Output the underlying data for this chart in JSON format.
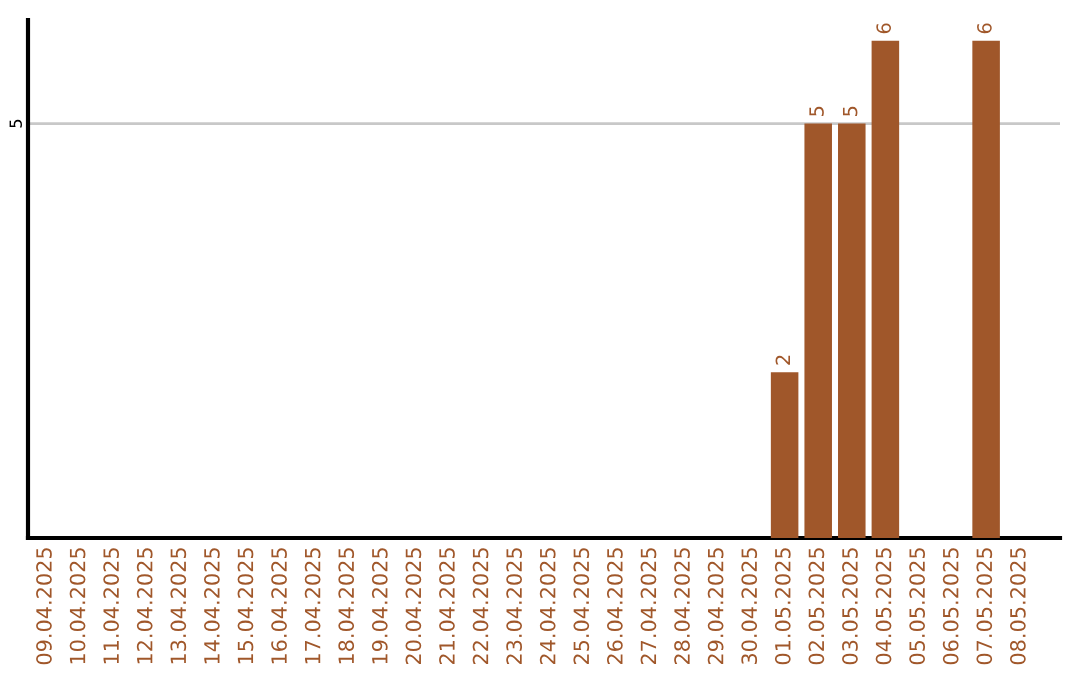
{
  "chart_data": {
    "type": "bar",
    "categories": [
      "09.04.2025",
      "10.04.2025",
      "11.04.2025",
      "12.04.2025",
      "13.04.2025",
      "14.04.2025",
      "15.04.2025",
      "16.04.2025",
      "17.04.2025",
      "18.04.2025",
      "19.04.2025",
      "20.04.2025",
      "21.04.2025",
      "22.04.2025",
      "23.04.2025",
      "24.04.2025",
      "25.04.2025",
      "26.04.2025",
      "27.04.2025",
      "28.04.2025",
      "29.04.2025",
      "30.04.2025",
      "01.05.2025",
      "02.05.2025",
      "03.05.2025",
      "04.05.2025",
      "05.05.2025",
      "06.05.2025",
      "07.05.2025",
      "08.05.2025"
    ],
    "values": [
      null,
      null,
      null,
      null,
      null,
      null,
      null,
      null,
      null,
      null,
      null,
      null,
      null,
      null,
      null,
      null,
      null,
      null,
      null,
      null,
      null,
      null,
      2,
      5,
      5,
      6,
      null,
      null,
      6,
      null
    ],
    "color": "#a0572a",
    "ylim": [
      0,
      6.25
    ],
    "yticks": [
      5
    ],
    "grid": "y",
    "data_labels": true
  }
}
